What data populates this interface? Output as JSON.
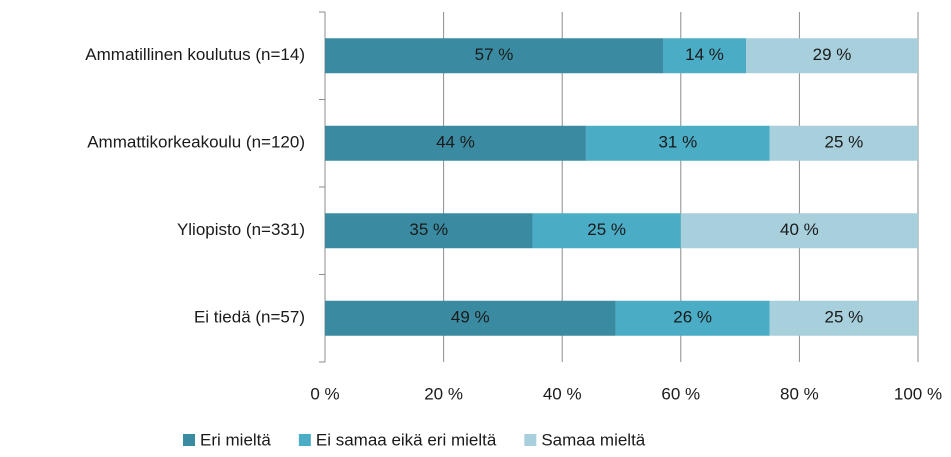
{
  "chart_data": {
    "type": "stacked-barh",
    "categories": [
      "Ammatillinen koulutus (n=14)",
      "Ammattikorkeakoulu (n=120)",
      "Yliopisto (n=331)",
      "Ei tiedä (n=57)"
    ],
    "series": [
      {
        "name": "Eri mieltä",
        "color": "#3a8ba1",
        "values": [
          57,
          44,
          35,
          49
        ],
        "value_labels": [
          "57 %",
          "44 %",
          "35 %",
          "49 %"
        ]
      },
      {
        "name": "Ei samaa eikä eri mieltä",
        "color": "#4bacc6",
        "values": [
          14,
          31,
          25,
          26
        ],
        "value_labels": [
          "14 %",
          "31 %",
          "25 %",
          "26 %"
        ]
      },
      {
        "name": "Samaa mieltä",
        "color": "#a7cfdc",
        "values": [
          29,
          25,
          40,
          25
        ],
        "value_labels": [
          "29 %",
          "25 %",
          "40 %",
          "25 %"
        ]
      }
    ],
    "xlim": [
      0,
      100
    ],
    "xticks": [
      {
        "value": 0,
        "label": "0 %"
      },
      {
        "value": 20,
        "label": "20 %"
      },
      {
        "value": 40,
        "label": "40 %"
      },
      {
        "value": 60,
        "label": "60 %"
      },
      {
        "value": 80,
        "label": "80 %"
      },
      {
        "value": 100,
        "label": "100 %"
      }
    ],
    "grid": true,
    "legend": "bottom"
  }
}
